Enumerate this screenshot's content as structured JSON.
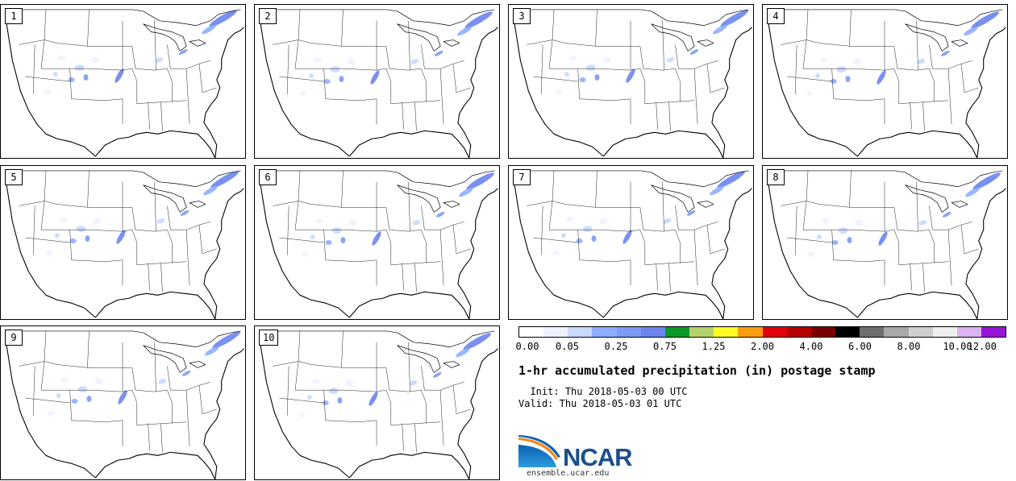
{
  "title": "1-hr accumulated precipitation (in) postage stamp",
  "init_label": "  Init:",
  "init_value": "Thu 2018-05-03 00 UTC",
  "valid_label": "Valid:",
  "valid_value": "Thu 2018-05-03 01 UTC",
  "members": [
    "1",
    "2",
    "3",
    "4",
    "5",
    "6",
    "7",
    "8",
    "9",
    "10"
  ],
  "colorbar": {
    "colors": [
      "#ffffff",
      "#eef3ff",
      "#c9d9ff",
      "#8eaeff",
      "#7d9bf5",
      "#6c84ee",
      "#0b9a28",
      "#b4d26b",
      "#fffb22",
      "#fb9d10",
      "#e4000b",
      "#b90000",
      "#7a0000",
      "#000000",
      "#6e6e6e",
      "#a8a8a8",
      "#cfcfcf",
      "#efefef",
      "#ddb2f0",
      "#9816d8"
    ],
    "tick_labels": [
      "0.00",
      "0.05",
      "0.25",
      "0.75",
      "1.25",
      "2.00",
      "4.00",
      "6.00",
      "8.00",
      "10.00",
      "12.00"
    ],
    "tick_index": [
      0,
      2,
      4,
      6,
      8,
      10,
      12,
      14,
      16,
      18,
      20
    ]
  },
  "logo": {
    "text": "NCAR",
    "url": "ensemble.ucar.edu"
  }
}
